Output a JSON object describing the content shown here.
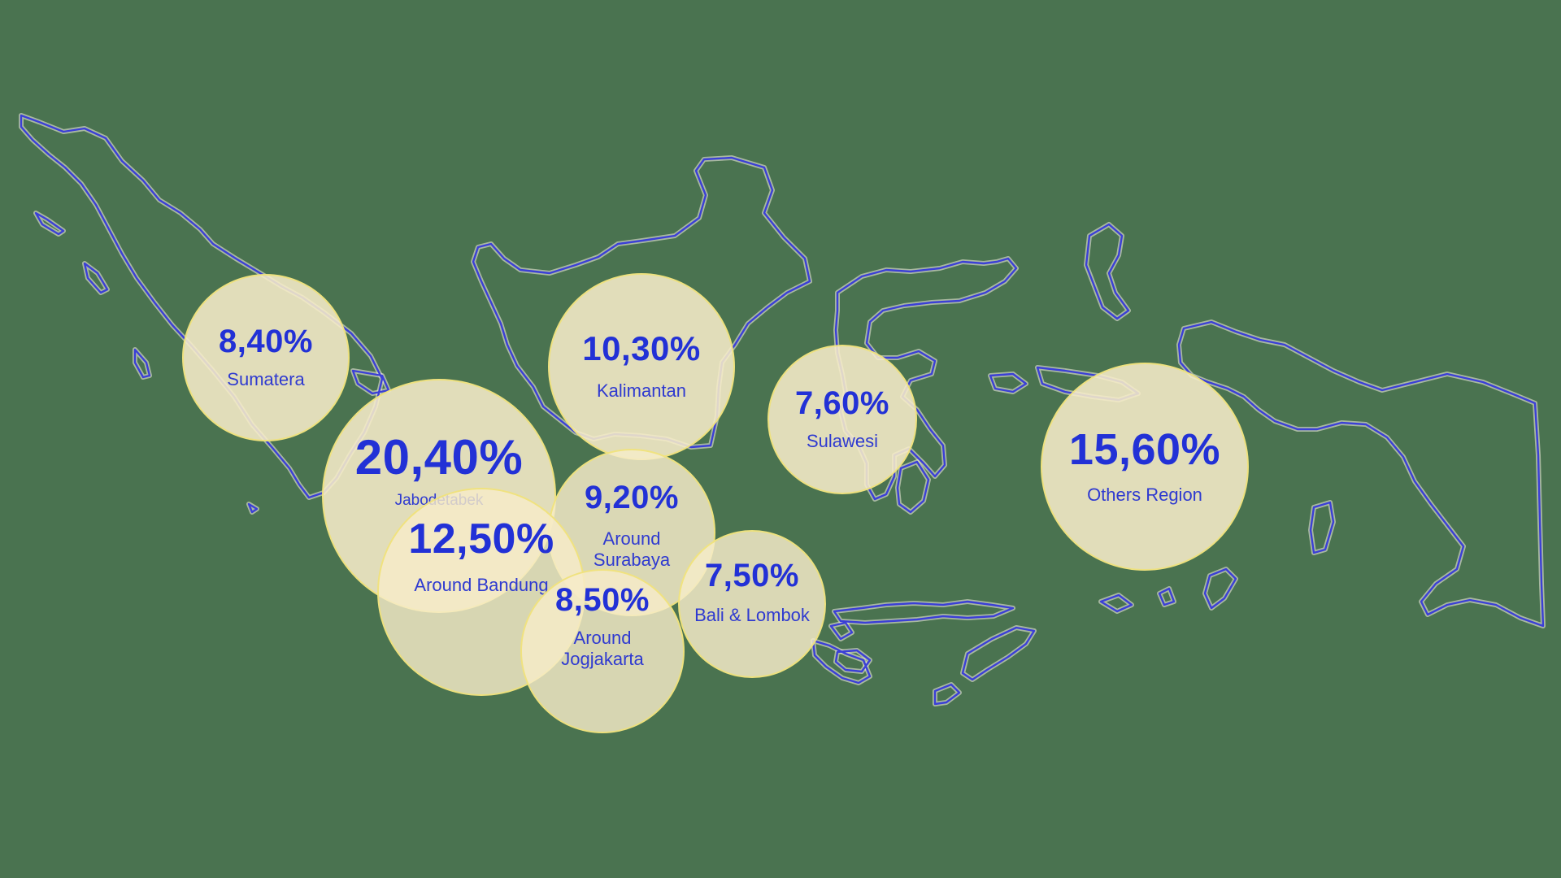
{
  "map": {
    "background_color": "#4a7350",
    "coastline_color": "#3b3fd6",
    "bubble_color": "#f6ecc8",
    "text_color": "#2231d6"
  },
  "regions": {
    "sumatera": {
      "percent": "8,40%",
      "label": "Sumatera",
      "value": 8.4
    },
    "kalimantan": {
      "percent": "10,30%",
      "label": "Kalimantan",
      "value": 10.3
    },
    "sulawesi": {
      "percent": "7,60%",
      "label": "Sulawesi",
      "value": 7.6
    },
    "others": {
      "percent": "15,60%",
      "label": "Others Region",
      "value": 15.6
    },
    "jabodetabek": {
      "percent": "20,40%",
      "label": "Jabodetabek",
      "value": 20.4
    },
    "surabaya": {
      "percent": "9,20%",
      "label": "Around\nSurabaya",
      "value": 9.2
    },
    "bandung": {
      "percent": "12,50%",
      "label": "Around Bandung",
      "value": 12.5
    },
    "bali": {
      "percent": "7,50%",
      "label": "Bali & Lombok",
      "value": 7.5
    },
    "jogja": {
      "percent": "8,50%",
      "label": "Around\nJogjakarta",
      "value": 8.5
    }
  }
}
